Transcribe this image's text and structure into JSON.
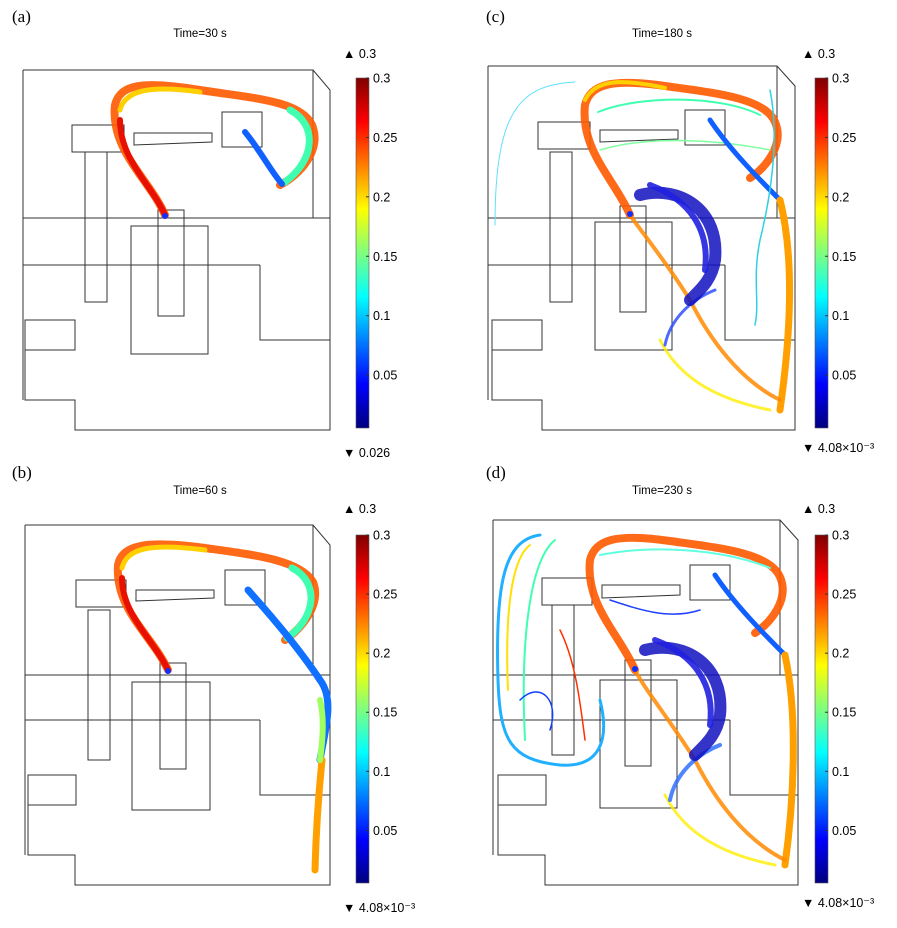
{
  "colormap": [
    "#00007f",
    "#0000ff",
    "#007fff",
    "#00ffff",
    "#7fff7f",
    "#ffff00",
    "#ff7f00",
    "#ff0000",
    "#7f0000"
  ],
  "colorbar_ticks": [
    "0.3",
    "0.25",
    "0.2",
    "0.15",
    "0.1",
    "0.05"
  ],
  "panels": [
    {
      "label": "(a)",
      "title": "Time=30 s",
      "max_label": "▲ 0.3",
      "min_label": "▼ 0.026"
    },
    {
      "label": "(b)",
      "title": "Time=60 s",
      "max_label": "▲ 0.3",
      "min_label": "▼ 4.08×10⁻³"
    },
    {
      "label": "(c)",
      "title": "Time=180 s",
      "max_label": "▲ 0.3",
      "min_label": "▼ 4.08×10⁻³"
    },
    {
      "label": "(d)",
      "title": "Time=230 s",
      "max_label": "▲ 0.3",
      "min_label": "▼ 4.08×10⁻³"
    }
  ]
}
